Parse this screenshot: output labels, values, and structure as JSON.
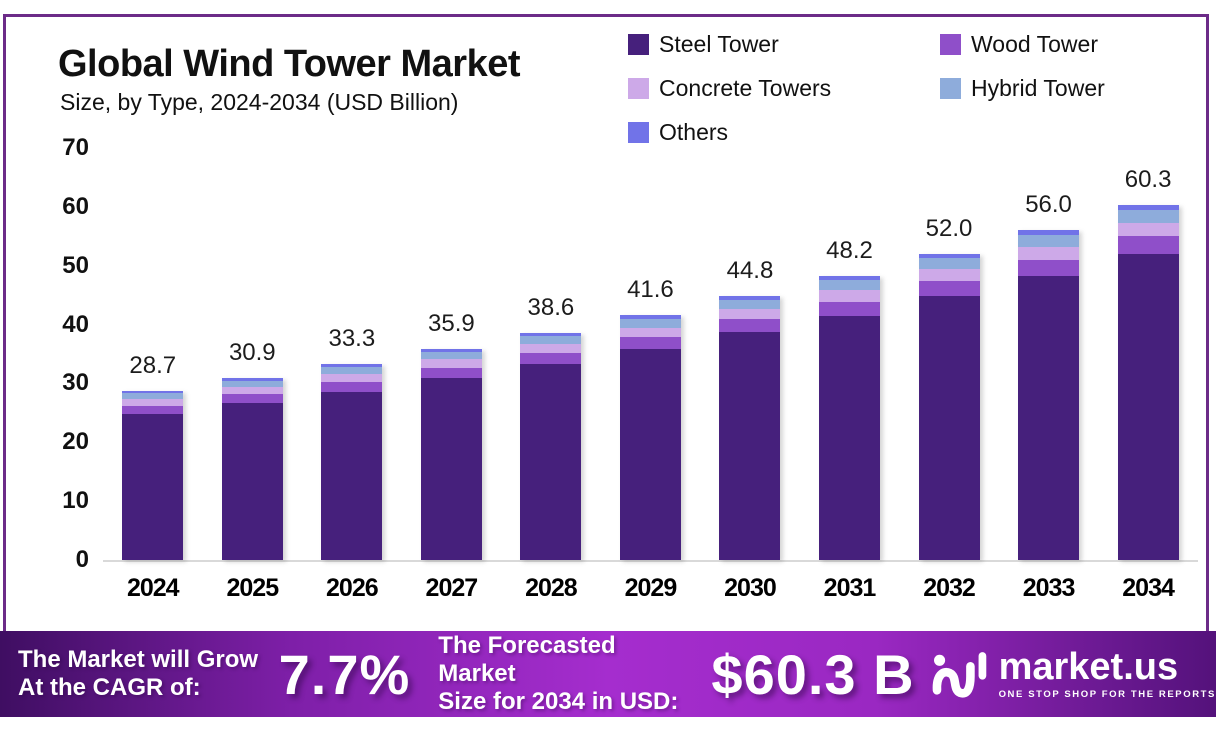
{
  "title": "Global Wind Tower Market",
  "subtitle": "Size, by Type, 2024-2034 (USD Billion)",
  "chart_data": {
    "type": "bar",
    "stacked": true,
    "title": "Global Wind Tower Market Size, by Type, 2024-2034 (USD Billion)",
    "categories": [
      "2024",
      "2025",
      "2026",
      "2027",
      "2028",
      "2029",
      "2030",
      "2031",
      "2032",
      "2033",
      "2034"
    ],
    "series": [
      {
        "name": "Steel Tower",
        "color": "#46207C",
        "values": [
          24.8,
          26.7,
          28.6,
          30.9,
          33.3,
          35.8,
          38.7,
          41.5,
          44.8,
          48.2,
          52.0
        ]
      },
      {
        "name": "Wood Tower",
        "color": "#8F4FC9",
        "values": [
          1.4,
          1.5,
          1.7,
          1.8,
          1.9,
          2.1,
          2.2,
          2.4,
          2.6,
          2.8,
          3.0
        ]
      },
      {
        "name": "Concrete Towers",
        "color": "#CDA9E8",
        "values": [
          1.1,
          1.2,
          1.3,
          1.4,
          1.5,
          1.6,
          1.7,
          1.9,
          2.0,
          2.2,
          2.3
        ]
      },
      {
        "name": "Hybrid Tower",
        "color": "#8EACDB",
        "values": [
          1.0,
          1.1,
          1.2,
          1.3,
          1.4,
          1.5,
          1.6,
          1.7,
          1.9,
          2.0,
          2.2
        ]
      },
      {
        "name": "Others",
        "color": "#7173E8",
        "values": [
          0.4,
          0.4,
          0.5,
          0.5,
          0.5,
          0.6,
          0.6,
          0.7,
          0.7,
          0.8,
          0.8
        ]
      }
    ],
    "totals": [
      28.7,
      30.9,
      33.3,
      35.9,
      38.6,
      41.6,
      44.8,
      48.2,
      52.0,
      56.0,
      60.3
    ],
    "total_labels": [
      "28.7",
      "30.9",
      "33.3",
      "35.9",
      "38.6",
      "41.6",
      "44.8",
      "48.2",
      "52.0",
      "56.0",
      "60.3"
    ],
    "ylim": [
      0,
      70
    ],
    "yticks": [
      0,
      10,
      20,
      30,
      40,
      50,
      60,
      70
    ],
    "grid": false,
    "legend_position": "top-right"
  },
  "banner": {
    "cagr_label_line1": "The Market will Grow",
    "cagr_label_line2": "At the CAGR of:",
    "cagr_value": "7.7%",
    "forecast_label_line1": "The Forecasted Market",
    "forecast_label_line2": "Size for 2034 in USD:",
    "forecast_value": "$60.3 B",
    "logo_name": "market.us",
    "logo_tagline": "ONE STOP SHOP FOR THE REPORTS"
  },
  "colors": {
    "box_border": "#6C2B88",
    "baseline": "#D9D9D9",
    "banner_left": "#3F0E62",
    "banner_mid": "#A52DCE",
    "banner_right": "#54127B",
    "text": "#111111",
    "banner_text": "#FFFFFF"
  }
}
